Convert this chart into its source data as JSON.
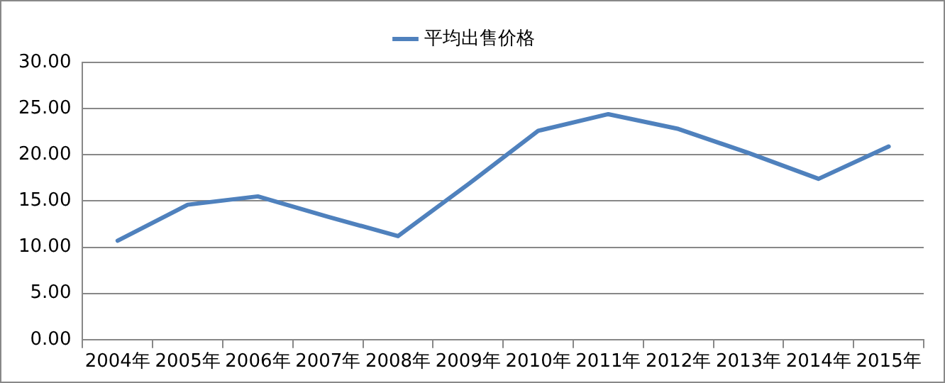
{
  "chart_data": {
    "type": "line",
    "categories": [
      "2004年",
      "2005年",
      "2006年",
      "2007年",
      "2008年",
      "2009年",
      "2010年",
      "2011年",
      "2012年",
      "2013年",
      "2014年",
      "2015年"
    ],
    "series": [
      {
        "name": "平均出售价格",
        "color": "#4f81bd",
        "values": [
          10.7,
          14.6,
          15.5,
          13.3,
          11.2,
          16.8,
          22.6,
          24.4,
          22.8,
          20.2,
          17.4,
          20.9
        ]
      }
    ],
    "ylim": [
      0,
      30
    ],
    "yticks": [
      {
        "value": 0,
        "label": "0.00"
      },
      {
        "value": 5,
        "label": "5.00"
      },
      {
        "value": 10,
        "label": "10.00"
      },
      {
        "value": 15,
        "label": "15.00"
      },
      {
        "value": 20,
        "label": "20.00"
      },
      {
        "value": 25,
        "label": "25.00"
      },
      {
        "value": 30,
        "label": "30.00"
      }
    ],
    "grid": "y",
    "legend": "top",
    "marker": "none",
    "line_style": "solid"
  }
}
